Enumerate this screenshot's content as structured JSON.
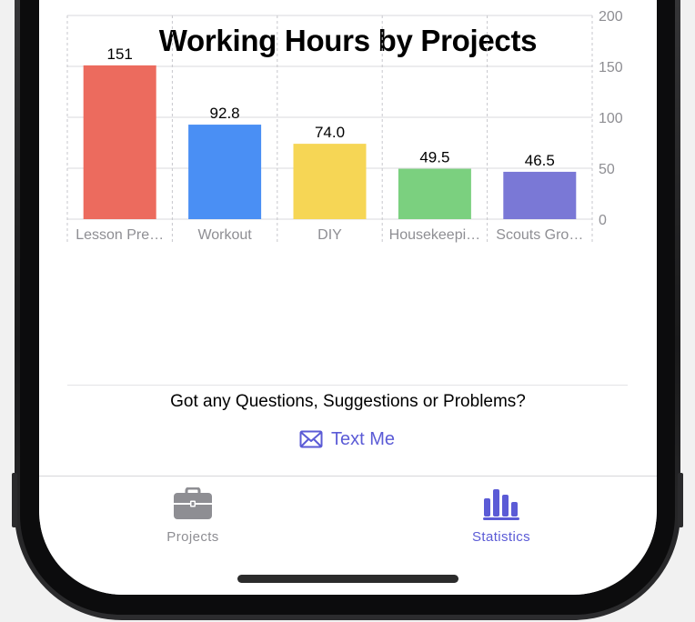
{
  "chart_data": {
    "type": "bar",
    "title": "Working Hours by Projects",
    "categories": [
      "Lesson Pre…",
      "Workout",
      "DIY",
      "Housekeepi…",
      "Scouts Gro…"
    ],
    "values": [
      151,
      92.8,
      74.0,
      49.5,
      46.5
    ],
    "value_labels": [
      "151",
      "92.8",
      "74.0",
      "49.5",
      "46.5"
    ],
    "colors": [
      "#ec6b5e",
      "#4a8ff4",
      "#f6d655",
      "#7bd07f",
      "#7a78d6"
    ],
    "ylim": [
      0,
      200
    ],
    "yticks": [
      0,
      50,
      100,
      150,
      200
    ],
    "y_axis_side": "right",
    "grid": true,
    "xlabel": "",
    "ylabel": ""
  },
  "footer": {
    "question": "Got any Questions, Suggestions or Problems?",
    "contact_label": "Text Me",
    "contact_icon": "envelope-icon"
  },
  "tabs": [
    {
      "label": "Projects",
      "icon": "briefcase-icon",
      "active": false
    },
    {
      "label": "Statistics",
      "icon": "bar-chart-icon",
      "active": true
    }
  ],
  "colors": {
    "accent": "#5b5bd6",
    "inactive": "#8e8e93"
  }
}
